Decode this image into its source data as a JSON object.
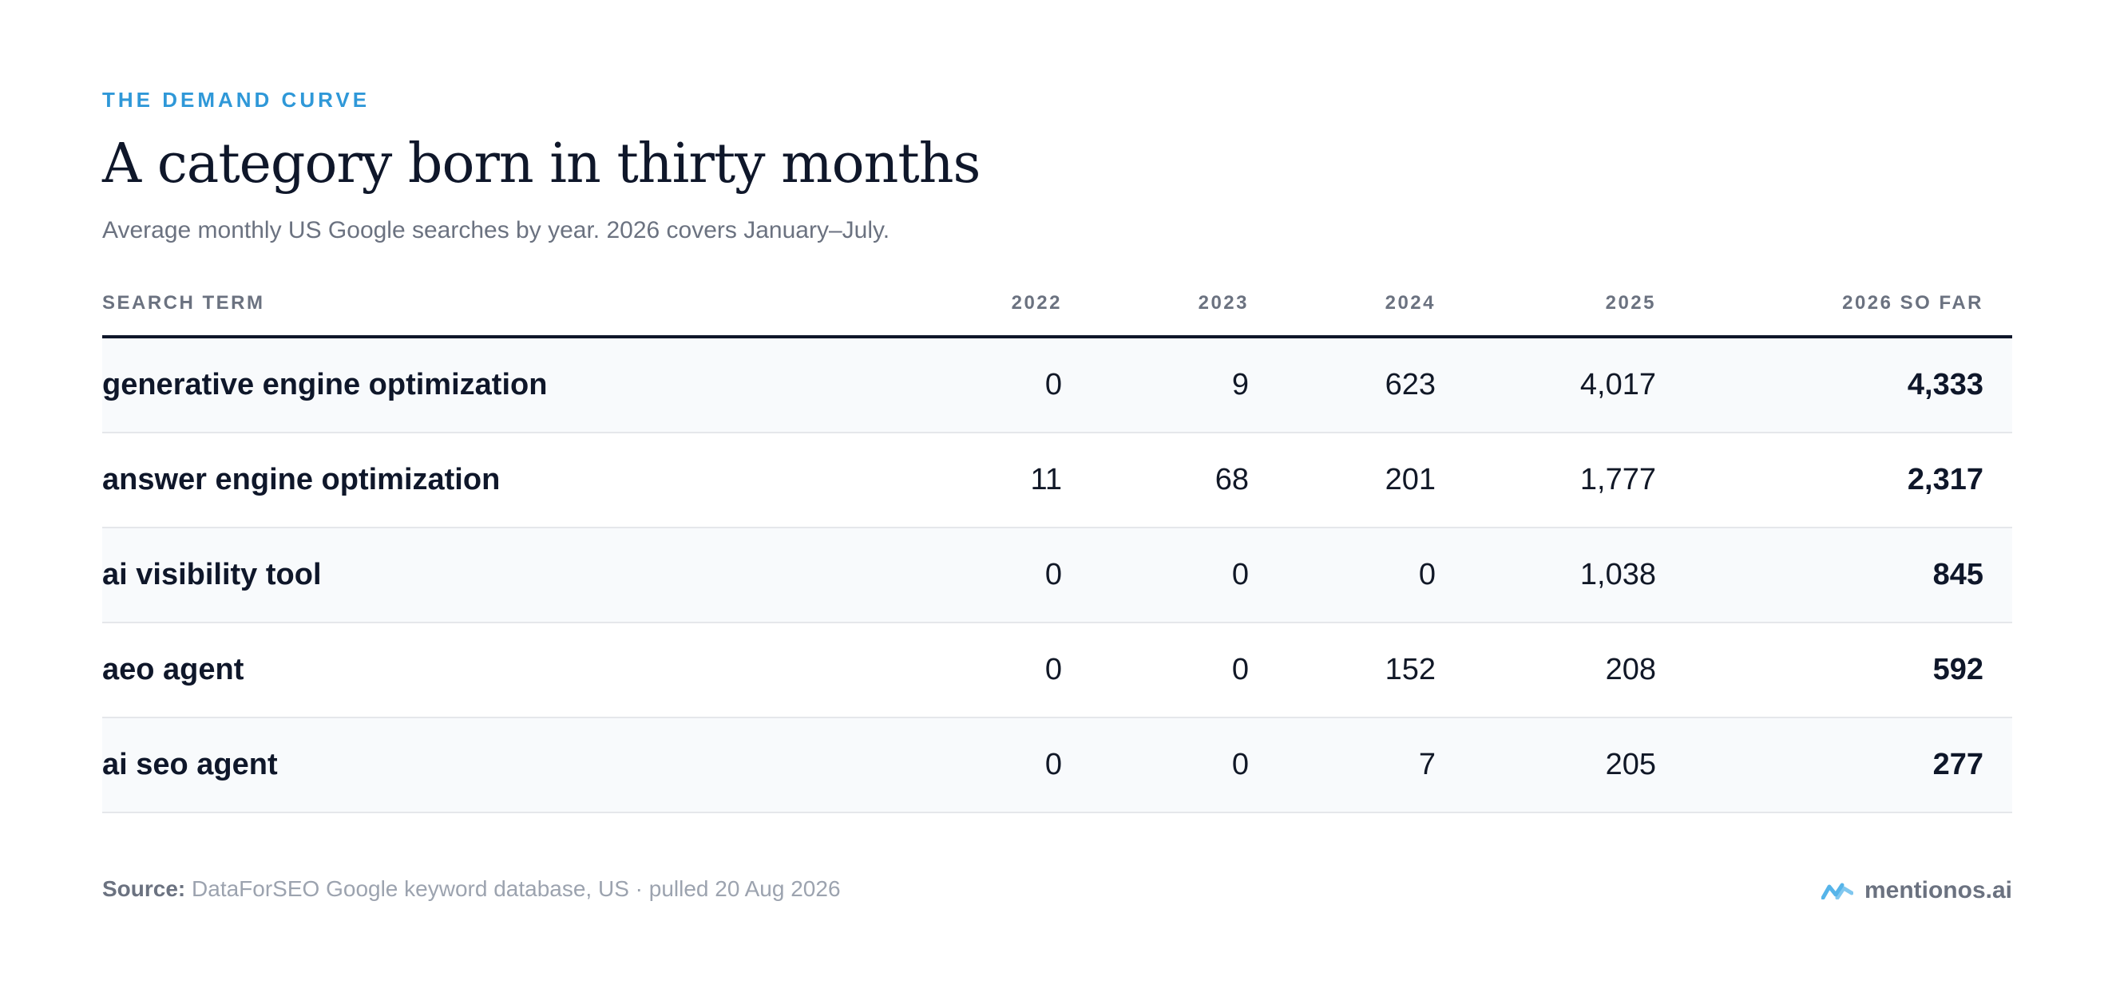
{
  "eyebrow": "THE DEMAND CURVE",
  "title": "A category born in thirty months",
  "subtitle": "Average monthly US Google searches by year. 2026 covers January–July.",
  "colors": {
    "eyebrow": "#2f98d8",
    "brand_mark": "#56b4e9"
  },
  "chart_data": {
    "type": "table",
    "title": "A category born in thirty months",
    "subtitle": "Average monthly US Google searches by year. 2026 covers January–July.",
    "columns": [
      "SEARCH TERM",
      "2022",
      "2023",
      "2024",
      "2025",
      "2026 SO FAR"
    ],
    "rows": [
      {
        "term": "generative engine optimization",
        "values": [
          "0",
          "9",
          "623",
          "4,017",
          "4,333"
        ]
      },
      {
        "term": "answer engine optimization",
        "values": [
          "11",
          "68",
          "201",
          "1,777",
          "2,317"
        ]
      },
      {
        "term": "ai visibility tool",
        "values": [
          "0",
          "0",
          "0",
          "1,038",
          "845"
        ]
      },
      {
        "term": "aeo agent",
        "values": [
          "0",
          "0",
          "152",
          "208",
          "592"
        ]
      },
      {
        "term": "ai seo agent",
        "values": [
          "0",
          "0",
          "7",
          "205",
          "277"
        ]
      }
    ]
  },
  "footer": {
    "source_label": "Source:",
    "source_text": "DataForSEO Google keyword database, US · pulled 20 Aug 2026",
    "brand_icon": "brand-logo-icon",
    "brand_name": "mentionos.ai"
  }
}
